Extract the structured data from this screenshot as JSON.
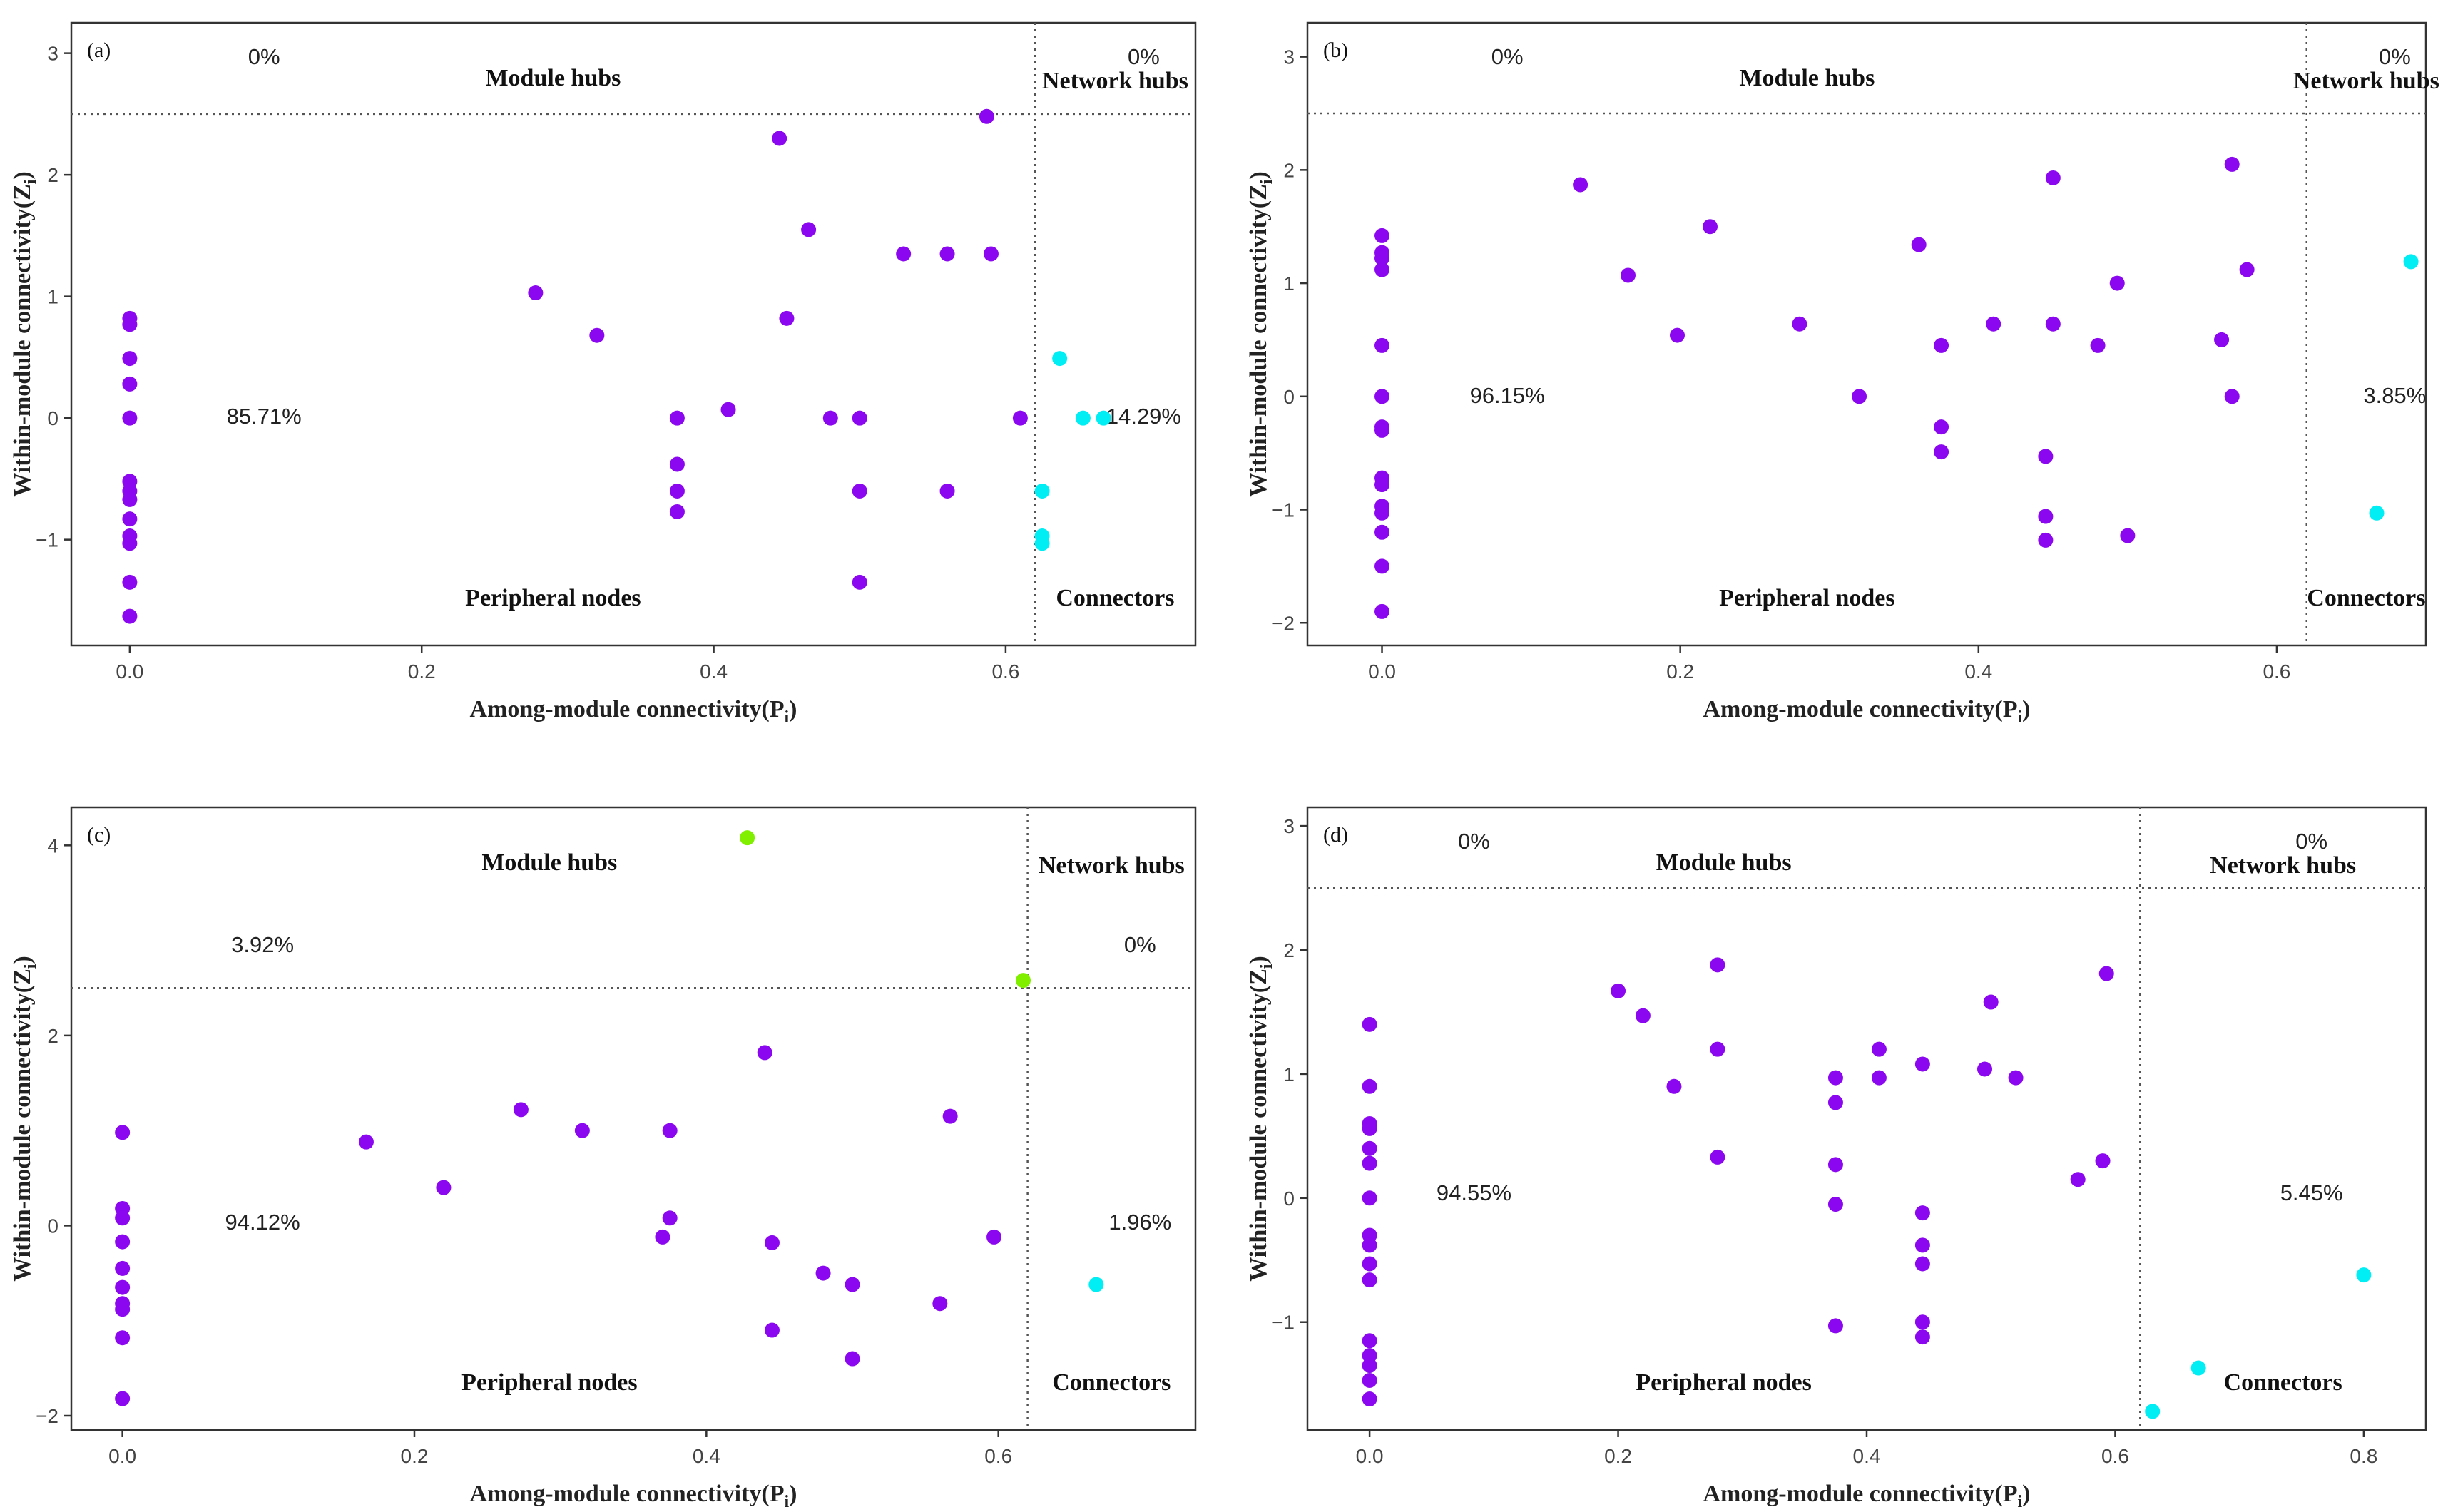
{
  "colors": {
    "purple": "#8a07f0",
    "cyan": "#00eef4",
    "green": "#80f000"
  },
  "common": {
    "xlabel": "Among-module connectivity(P",
    "xlabel_sub": "i",
    "ylabel": "Within-module connectivity(Z",
    "ylabel_sub": "i",
    "label_module_hubs": "Module hubs",
    "label_network_hubs": "Network hubs",
    "label_peripheral": "Peripheral nodes",
    "label_connectors": "Connectors",
    "pc_threshold": 0.62,
    "zi_threshold": 2.5
  },
  "chart_data": [
    {
      "type": "scatter",
      "panel": "(a)",
      "xlim": [
        -0.04,
        0.73
      ],
      "ylim": [
        -1.87,
        3.25
      ],
      "xticks": [
        0.0,
        0.2,
        0.4,
        0.6
      ],
      "xtick_labels": [
        "0.0",
        "0.2",
        "0.4",
        "0.6"
      ],
      "yticks": [
        -1,
        0,
        1,
        2,
        3
      ],
      "ytick_labels": [
        "−1",
        "0",
        "1",
        "2",
        "3"
      ],
      "percent": {
        "module_hubs": "0%",
        "network_hubs": "0%",
        "peripheral": "85.71%",
        "connectors": "14.29%"
      },
      "points": [
        [
          0,
          0.82,
          "p"
        ],
        [
          0,
          0.77,
          "p"
        ],
        [
          0,
          0.49,
          "p"
        ],
        [
          0,
          0.28,
          "p"
        ],
        [
          0,
          0.0,
          "p"
        ],
        [
          0,
          -0.52,
          "p"
        ],
        [
          0,
          -0.6,
          "p"
        ],
        [
          0,
          -0.67,
          "p"
        ],
        [
          0,
          -0.83,
          "p"
        ],
        [
          0,
          -0.97,
          "p"
        ],
        [
          0,
          -1.03,
          "p"
        ],
        [
          0,
          -1.35,
          "p"
        ],
        [
          0,
          -1.63,
          "p"
        ],
        [
          0.278,
          1.03,
          "p"
        ],
        [
          0.32,
          0.68,
          "p"
        ],
        [
          0.375,
          0.0,
          "p"
        ],
        [
          0.375,
          -0.38,
          "p"
        ],
        [
          0.375,
          -0.6,
          "p"
        ],
        [
          0.375,
          -0.77,
          "p"
        ],
        [
          0.41,
          0.07,
          "p"
        ],
        [
          0.445,
          2.3,
          "p"
        ],
        [
          0.45,
          0.82,
          "p"
        ],
        [
          0.465,
          1.55,
          "p"
        ],
        [
          0.48,
          0.0,
          "p"
        ],
        [
          0.5,
          0.0,
          "p"
        ],
        [
          0.5,
          -0.6,
          "p"
        ],
        [
          0.5,
          -1.35,
          "p"
        ],
        [
          0.53,
          1.35,
          "p"
        ],
        [
          0.56,
          1.35,
          "p"
        ],
        [
          0.56,
          -0.6,
          "p"
        ],
        [
          0.587,
          2.48,
          "p"
        ],
        [
          0.59,
          1.35,
          "p"
        ],
        [
          0.61,
          0.0,
          "p"
        ],
        [
          0.637,
          0.49,
          "c"
        ],
        [
          0.653,
          0.0,
          "c"
        ],
        [
          0.667,
          0.0,
          "c"
        ],
        [
          0.625,
          -0.6,
          "c"
        ],
        [
          0.625,
          -0.97,
          "c"
        ],
        [
          0.625,
          -1.03,
          "c"
        ]
      ]
    },
    {
      "type": "scatter",
      "panel": "(b)",
      "xlim": [
        -0.05,
        0.7
      ],
      "ylim": [
        -2.2,
        3.3
      ],
      "xticks": [
        0.0,
        0.2,
        0.4,
        0.6
      ],
      "xtick_labels": [
        "0.0",
        "0.2",
        "0.4",
        "0.6"
      ],
      "yticks": [
        -2,
        -1,
        0,
        1,
        2,
        3
      ],
      "ytick_labels": [
        "−2",
        "−1",
        "0",
        "1",
        "2",
        "3"
      ],
      "percent": {
        "module_hubs": "0%",
        "network_hubs": "0%",
        "peripheral": "96.15%",
        "connectors": "3.85%"
      },
      "points": [
        [
          0,
          1.42,
          "p"
        ],
        [
          0,
          1.27,
          "p"
        ],
        [
          0,
          1.22,
          "p"
        ],
        [
          0,
          1.12,
          "p"
        ],
        [
          0,
          0.45,
          "p"
        ],
        [
          0,
          0.0,
          "p"
        ],
        [
          0,
          -0.27,
          "p"
        ],
        [
          0,
          -0.3,
          "p"
        ],
        [
          0,
          -0.72,
          "p"
        ],
        [
          0,
          -0.78,
          "p"
        ],
        [
          0,
          -0.97,
          "p"
        ],
        [
          0,
          -1.03,
          "p"
        ],
        [
          0,
          -1.2,
          "p"
        ],
        [
          0,
          -1.5,
          "p"
        ],
        [
          0,
          -1.9,
          "p"
        ],
        [
          0.133,
          1.87,
          "p"
        ],
        [
          0.165,
          1.07,
          "p"
        ],
        [
          0.198,
          0.54,
          "p"
        ],
        [
          0.22,
          1.5,
          "p"
        ],
        [
          0.28,
          0.64,
          "p"
        ],
        [
          0.32,
          0.0,
          "p"
        ],
        [
          0.36,
          1.34,
          "p"
        ],
        [
          0.375,
          0.45,
          "p"
        ],
        [
          0.375,
          -0.27,
          "p"
        ],
        [
          0.375,
          -0.49,
          "p"
        ],
        [
          0.41,
          0.64,
          "p"
        ],
        [
          0.445,
          -0.53,
          "p"
        ],
        [
          0.445,
          -1.06,
          "p"
        ],
        [
          0.445,
          -1.27,
          "p"
        ],
        [
          0.45,
          1.93,
          "p"
        ],
        [
          0.45,
          0.64,
          "p"
        ],
        [
          0.48,
          0.45,
          "p"
        ],
        [
          0.493,
          1.0,
          "p"
        ],
        [
          0.5,
          -1.23,
          "p"
        ],
        [
          0.563,
          0.5,
          "p"
        ],
        [
          0.57,
          2.05,
          "p"
        ],
        [
          0.57,
          0.0,
          "p"
        ],
        [
          0.58,
          1.12,
          "p"
        ],
        [
          0.69,
          1.19,
          "c"
        ],
        [
          0.667,
          -1.03,
          "c"
        ]
      ]
    },
    {
      "type": "scatter",
      "panel": "(c)",
      "xlim": [
        -0.035,
        0.735
      ],
      "ylim": [
        -2.15,
        4.4
      ],
      "xticks": [
        0.0,
        0.2,
        0.4,
        0.6
      ],
      "xtick_labels": [
        "0.0",
        "0.2",
        "0.4",
        "0.6"
      ],
      "yticks": [
        -2,
        0,
        2,
        4
      ],
      "ytick_labels": [
        "−2",
        "0",
        "2",
        "4"
      ],
      "percent": {
        "module_hubs": "3.92%",
        "network_hubs": "0%",
        "peripheral": "94.12%",
        "connectors": "1.96%"
      },
      "points": [
        [
          0,
          0.98,
          "p"
        ],
        [
          0,
          0.18,
          "p"
        ],
        [
          0,
          0.08,
          "p"
        ],
        [
          0,
          -0.17,
          "p"
        ],
        [
          0,
          -0.45,
          "p"
        ],
        [
          0,
          -0.65,
          "p"
        ],
        [
          0,
          -0.82,
          "p"
        ],
        [
          0,
          -0.88,
          "p"
        ],
        [
          0,
          -1.18,
          "p"
        ],
        [
          0,
          -1.82,
          "p"
        ],
        [
          0.167,
          0.88,
          "p"
        ],
        [
          0.22,
          0.4,
          "p"
        ],
        [
          0.273,
          1.22,
          "p"
        ],
        [
          0.315,
          1.0,
          "p"
        ],
        [
          0.37,
          -0.12,
          "p"
        ],
        [
          0.375,
          1.0,
          "p"
        ],
        [
          0.375,
          0.08,
          "p"
        ],
        [
          0.44,
          1.82,
          "p"
        ],
        [
          0.445,
          -0.18,
          "p"
        ],
        [
          0.445,
          -1.1,
          "p"
        ],
        [
          0.48,
          -0.5,
          "p"
        ],
        [
          0.5,
          -0.62,
          "p"
        ],
        [
          0.5,
          -1.4,
          "p"
        ],
        [
          0.56,
          -0.82,
          "p"
        ],
        [
          0.567,
          1.15,
          "p"
        ],
        [
          0.597,
          -0.12,
          "p"
        ],
        [
          0.428,
          4.08,
          "g"
        ],
        [
          0.617,
          2.58,
          "g"
        ],
        [
          0.667,
          -0.62,
          "c"
        ]
      ]
    },
    {
      "type": "scatter",
      "panel": "(d)",
      "xlim": [
        -0.05,
        0.85
      ],
      "ylim": [
        -1.87,
        3.15
      ],
      "xticks": [
        0.0,
        0.2,
        0.4,
        0.6,
        0.8
      ],
      "xtick_labels": [
        "0.0",
        "0.2",
        "0.4",
        "0.6",
        "0.8"
      ],
      "yticks": [
        -1,
        0,
        1,
        2,
        3
      ],
      "ytick_labels": [
        "−1",
        "0",
        "1",
        "2",
        "3"
      ],
      "percent": {
        "module_hubs": "0%",
        "network_hubs": "0%",
        "peripheral": "94.55%",
        "connectors": "5.45%"
      },
      "points": [
        [
          0,
          1.4,
          "p"
        ],
        [
          0,
          0.9,
          "p"
        ],
        [
          0,
          0.6,
          "p"
        ],
        [
          0,
          0.56,
          "p"
        ],
        [
          0,
          0.4,
          "p"
        ],
        [
          0,
          0.28,
          "p"
        ],
        [
          0,
          0.0,
          "p"
        ],
        [
          0,
          -0.3,
          "p"
        ],
        [
          0,
          -0.38,
          "p"
        ],
        [
          0,
          -0.53,
          "p"
        ],
        [
          0,
          -0.66,
          "p"
        ],
        [
          0,
          -1.15,
          "p"
        ],
        [
          0,
          -1.27,
          "p"
        ],
        [
          0,
          -1.35,
          "p"
        ],
        [
          0,
          -1.47,
          "p"
        ],
        [
          0,
          -1.62,
          "p"
        ],
        [
          0.2,
          1.67,
          "p"
        ],
        [
          0.22,
          1.47,
          "p"
        ],
        [
          0.245,
          0.9,
          "p"
        ],
        [
          0.28,
          1.88,
          "p"
        ],
        [
          0.28,
          1.2,
          "p"
        ],
        [
          0.28,
          0.33,
          "p"
        ],
        [
          0.375,
          0.97,
          "p"
        ],
        [
          0.375,
          0.77,
          "p"
        ],
        [
          0.375,
          0.27,
          "p"
        ],
        [
          0.375,
          -0.05,
          "p"
        ],
        [
          0.375,
          -1.03,
          "p"
        ],
        [
          0.41,
          1.2,
          "p"
        ],
        [
          0.41,
          0.97,
          "p"
        ],
        [
          0.445,
          1.08,
          "p"
        ],
        [
          0.445,
          -0.12,
          "p"
        ],
        [
          0.445,
          -0.38,
          "p"
        ],
        [
          0.445,
          -0.53,
          "p"
        ],
        [
          0.445,
          -1.0,
          "p"
        ],
        [
          0.445,
          -1.12,
          "p"
        ],
        [
          0.495,
          1.04,
          "p"
        ],
        [
          0.5,
          1.58,
          "p"
        ],
        [
          0.52,
          0.97,
          "p"
        ],
        [
          0.57,
          0.15,
          "p"
        ],
        [
          0.59,
          0.3,
          "p"
        ],
        [
          0.593,
          1.81,
          "p"
        ],
        [
          0.8,
          -0.62,
          "c"
        ],
        [
          0.667,
          -1.37,
          "c"
        ],
        [
          0.63,
          -1.72,
          "c"
        ]
      ]
    }
  ]
}
